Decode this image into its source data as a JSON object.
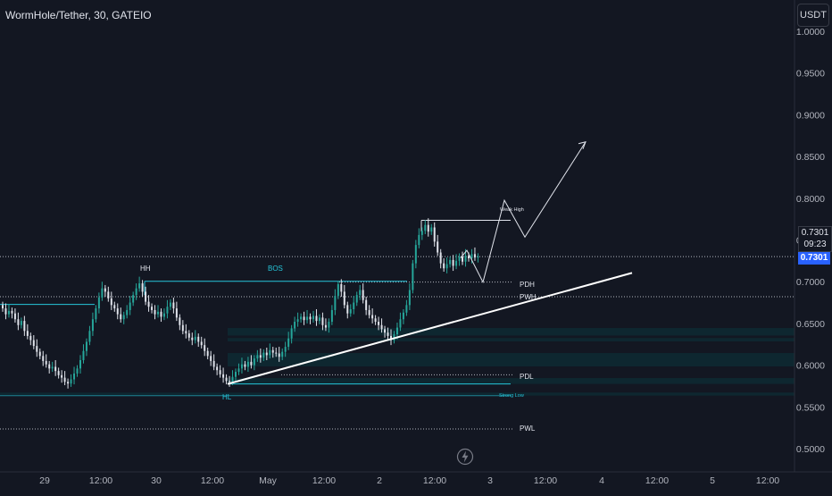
{
  "header": {
    "title": "WormHole/Tether, 30, GATEIO",
    "currency_label": "USDT"
  },
  "price_badge": {
    "last_price": "0.7301",
    "countdown": "09:23",
    "axis_price": "0.7301"
  },
  "colors": {
    "background": "#131722",
    "up": "#26a69a",
    "down": "#e0e3eb",
    "level_line": "#26c6da",
    "trend_line": "#ffffff",
    "zone": "#0e2a33",
    "badge_blue": "#2962ff",
    "axis_text": "#b2b5be"
  },
  "chart_data": {
    "type": "candlestick",
    "y_axis": {
      "ticks": [
        "1.0000",
        "0.9500",
        "0.9000",
        "0.8500",
        "0.8000",
        "0.7500",
        "0.7000",
        "0.6500",
        "0.6000",
        "0.5500",
        "0.5000"
      ],
      "range": [
        0.4875,
        1.0
      ]
    },
    "x_axis": {
      "ticks": [
        "29",
        "12:00",
        "30",
        "12:00",
        "May",
        "12:00",
        "2",
        "12:00",
        "3",
        "12:00",
        "4",
        "12:00",
        "5",
        "12:00"
      ]
    },
    "closes": [
      0.668,
      0.661,
      0.665,
      0.662,
      0.655,
      0.648,
      0.653,
      0.641,
      0.635,
      0.63,
      0.623,
      0.616,
      0.611,
      0.605,
      0.601,
      0.596,
      0.598,
      0.593,
      0.588,
      0.585,
      0.58,
      0.578,
      0.583,
      0.59,
      0.596,
      0.606,
      0.617,
      0.628,
      0.641,
      0.655,
      0.668,
      0.681,
      0.692,
      0.688,
      0.68,
      0.672,
      0.668,
      0.661,
      0.655,
      0.66,
      0.666,
      0.675,
      0.684,
      0.692,
      0.698,
      0.688,
      0.676,
      0.67,
      0.666,
      0.661,
      0.664,
      0.658,
      0.662,
      0.67,
      0.675,
      0.668,
      0.657,
      0.648,
      0.641,
      0.638,
      0.633,
      0.63,
      0.634,
      0.628,
      0.624,
      0.617,
      0.611,
      0.605,
      0.598,
      0.594,
      0.589,
      0.585,
      0.581,
      0.58,
      0.586,
      0.592,
      0.596,
      0.601,
      0.598,
      0.604,
      0.6,
      0.608,
      0.612,
      0.609,
      0.615,
      0.612,
      0.618,
      0.615,
      0.614,
      0.61,
      0.616,
      0.622,
      0.632,
      0.644,
      0.652,
      0.655,
      0.658,
      0.654,
      0.658,
      0.655,
      0.659,
      0.653,
      0.657,
      0.648,
      0.645,
      0.652,
      0.666,
      0.683,
      0.697,
      0.688,
      0.672,
      0.662,
      0.667,
      0.675,
      0.684,
      0.69,
      0.678,
      0.666,
      0.66,
      0.656,
      0.652,
      0.648,
      0.643,
      0.639,
      0.635,
      0.63,
      0.637,
      0.645,
      0.655,
      0.663,
      0.672,
      0.69,
      0.722,
      0.744,
      0.756,
      0.761,
      0.768,
      0.76,
      0.765,
      0.748,
      0.735,
      0.722,
      0.716,
      0.721,
      0.726,
      0.719,
      0.725,
      0.73,
      0.724,
      0.731,
      0.728,
      0.733,
      0.729,
      0.7301
    ],
    "levels": [
      {
        "label": "HH",
        "price": 0.7005
      },
      {
        "label": "PDH",
        "price": 0.6995
      },
      {
        "label": "PWH",
        "price": 0.682
      },
      {
        "label": "PDL",
        "price": 0.5885
      },
      {
        "label": "Strong Low",
        "price": 0.566
      },
      {
        "label": "PWL",
        "price": 0.5235
      },
      {
        "label": "Weak High",
        "price": 0.7735
      }
    ],
    "annotations": [
      "HH",
      "BOS",
      "HL",
      "PDH",
      "PWH",
      "PDL",
      "PWL",
      "Weak High",
      "Strong Low"
    ]
  }
}
